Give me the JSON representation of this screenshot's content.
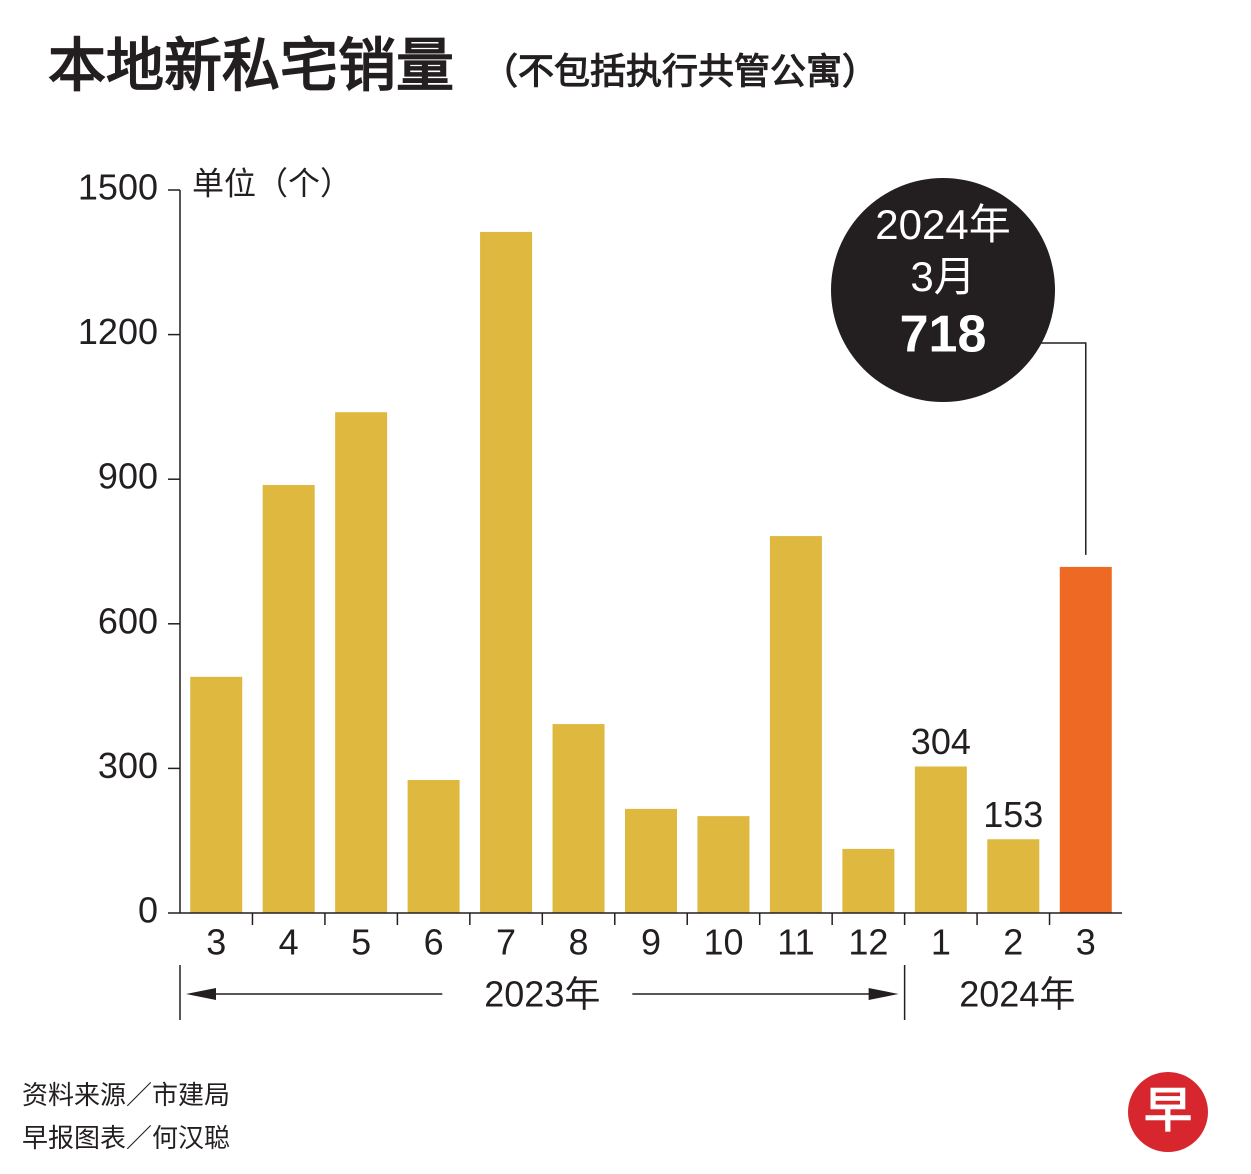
{
  "chart_data": {
    "type": "bar",
    "title": "本地新私宅销量",
    "subtitle": "（不包括执行共管公寓）",
    "y_label": "单位（个）",
    "categories": [
      "3",
      "4",
      "5",
      "6",
      "7",
      "8",
      "9",
      "10",
      "11",
      "12",
      "1",
      "2",
      "3"
    ],
    "values": [
      490,
      888,
      1039,
      276,
      1413,
      392,
      216,
      201,
      782,
      133,
      304,
      153,
      718
    ],
    "colors": [
      "#dfb83f",
      "#dfb83f",
      "#dfb83f",
      "#dfb83f",
      "#dfb83f",
      "#dfb83f",
      "#dfb83f",
      "#dfb83f",
      "#dfb83f",
      "#dfb83f",
      "#dfb83f",
      "#dfb83f",
      "#ee6a24"
    ],
    "show_value_labels": [
      false,
      false,
      false,
      false,
      false,
      false,
      false,
      false,
      false,
      false,
      true,
      true,
      false
    ],
    "year_labels": [
      "2023年",
      "2024年"
    ],
    "callout": {
      "year": "2024年",
      "month": "3月"
    },
    "ylim": [
      0,
      1500
    ],
    "yticks": [
      0,
      300,
      600,
      900,
      1200,
      1500
    ],
    "source": "资料来源／市建局",
    "credit": "早报图表／何汉聪",
    "logo": "早"
  }
}
